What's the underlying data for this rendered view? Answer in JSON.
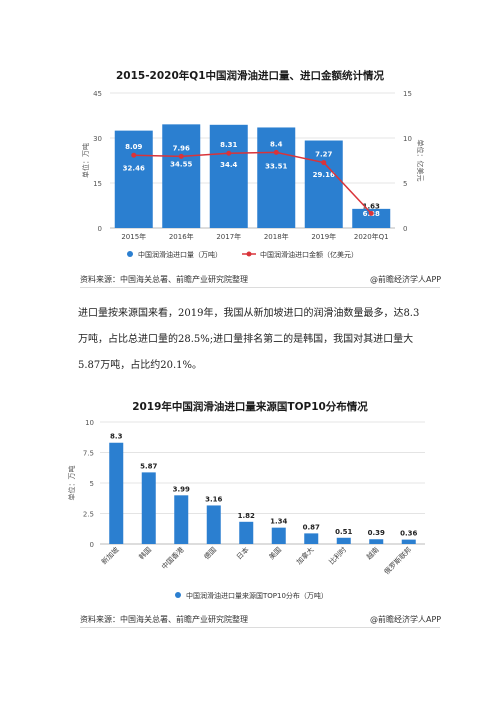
{
  "chart_data": [
    {
      "type": "bar+line",
      "title": "2015-2020年Q1中国润滑油进口量、进口金额统计情况",
      "categories": [
        "2015年",
        "2016年",
        "2017年",
        "2018年",
        "2019年",
        "2020年Q1"
      ],
      "series": [
        {
          "name": "中国润滑油进口量（万吨）",
          "type": "bar",
          "axis": "left",
          "values": [
            32.46,
            34.55,
            34.4,
            33.51,
            29.16,
            6.38
          ]
        },
        {
          "name": "中国润滑油进口金额（亿美元）",
          "type": "line",
          "axis": "right",
          "values": [
            8.09,
            7.96,
            8.31,
            8.4,
            7.27,
            1.63
          ]
        }
      ],
      "ylabel_left": "单位：万吨",
      "ylabel_right": "单位：亿美元",
      "ylim_left": [
        0,
        45
      ],
      "ylim_right": [
        0,
        15
      ],
      "yticks_left": [
        "0",
        "15",
        "30",
        "45"
      ],
      "yticks_right": [
        "0",
        "5",
        "10",
        "15"
      ],
      "grid": true,
      "legend_position": "bottom",
      "colors": {
        "bar": "#2b7fd0",
        "line": "#d9343a"
      }
    },
    {
      "type": "bar",
      "title": "2019年中国润滑油进口量来源国TOP10分布情况",
      "categories": [
        "新加坡",
        "韩国",
        "中国香港",
        "德国",
        "日本",
        "美国",
        "加拿大",
        "比利时",
        "越南",
        "俄罗斯联邦"
      ],
      "series": [
        {
          "name": "中国润滑油进口量来源国TOP10分布（万吨）",
          "values": [
            8.3,
            5.87,
            3.99,
            3.16,
            1.82,
            1.34,
            0.87,
            0.51,
            0.39,
            0.36
          ]
        }
      ],
      "ylabel": "单位：万吨",
      "ylim": [
        0,
        10
      ],
      "yticks": [
        "0",
        "2.5",
        "5",
        "7.5",
        "10"
      ],
      "grid": true,
      "legend_position": "bottom",
      "colors": {
        "bar": "#2b7fd0"
      }
    }
  ],
  "paragraph_lines": [
    "进口量按来源国来看，2019年，我国从新加坡进口的润滑油数量最多，达8.3",
    "万吨，占比总进口量的28.5%;进口量排名第二的是韩国，我国对其进口量大",
    "5.87万吨，占比约20.1%。"
  ],
  "source1": "资料来源：中国海关总署、前瞻产业研究院整理",
  "source2": "资料来源：中国海关总署、前瞻产业研究院整理",
  "credit1": "@前瞻经济学人APP",
  "credit2": "@前瞻经济学人APP"
}
